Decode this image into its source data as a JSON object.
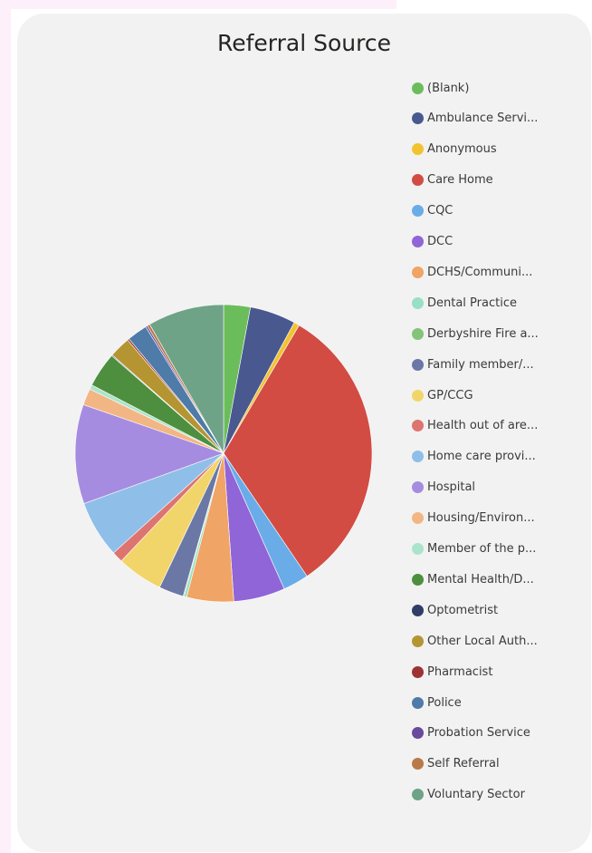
{
  "chart_data": {
    "type": "pie",
    "title": "Referral Source",
    "legend_position": "right",
    "slices": [
      {
        "label": "(Blank)",
        "legend_text": "(Blank)",
        "value": 2.9,
        "color": "#6bbd5b"
      },
      {
        "label": "Ambulance Service",
        "legend_text": "Ambulance Servi...",
        "value": 5.0,
        "color": "#4a5890"
      },
      {
        "label": "Anonymous",
        "legend_text": "Anonymous",
        "value": 0.6,
        "color": "#f2c331"
      },
      {
        "label": "Care Home",
        "legend_text": "Care Home",
        "value": 32.0,
        "color": "#d24c44"
      },
      {
        "label": "CQC",
        "legend_text": "CQC",
        "value": 2.8,
        "color": "#6aace8"
      },
      {
        "label": "DCC",
        "legend_text": "DCC",
        "value": 5.6,
        "color": "#9065d8"
      },
      {
        "label": "DCHS/Community",
        "legend_text": "DCHS/Communi...",
        "value": 5.1,
        "color": "#f0a465"
      },
      {
        "label": "Dental Practice",
        "legend_text": "Dental Practice",
        "value": 0.3,
        "color": "#99dfc3"
      },
      {
        "label": "Derbyshire Fire and Rescue",
        "legend_text": "Derbyshire Fire a...",
        "value": 0.1,
        "color": "#83c47a"
      },
      {
        "label": "Family member/Friend",
        "legend_text": "Family member/...",
        "value": 2.7,
        "color": "#6b78a6"
      },
      {
        "label": "GP/CCG",
        "legend_text": "GP/CCG",
        "value": 5.0,
        "color": "#f2d56a"
      },
      {
        "label": "Health out of area",
        "legend_text": "Health out of are...",
        "value": 1.2,
        "color": "#de7470"
      },
      {
        "label": "Home care provider",
        "legend_text": "Home care provi...",
        "value": 6.2,
        "color": "#8fbfe8"
      },
      {
        "label": "Hospital",
        "legend_text": "Hospital",
        "value": 10.8,
        "color": "#a68ce0"
      },
      {
        "label": "Housing/Environmental Health",
        "legend_text": "Housing/Environ...",
        "value": 1.8,
        "color": "#f2b684"
      },
      {
        "label": "Member of the public",
        "legend_text": "Member of the p...",
        "value": 0.5,
        "color": "#abe4cc"
      },
      {
        "label": "Mental Health/DHcFT",
        "legend_text": "Mental Health/D...",
        "value": 3.8,
        "color": "#4e8f3f"
      },
      {
        "label": "Optometrist",
        "legend_text": "Optometrist",
        "value": 0.1,
        "color": "#2f3e68"
      },
      {
        "label": "Other Local Authority",
        "legend_text": "Other Local Auth...",
        "value": 2.3,
        "color": "#b59532"
      },
      {
        "label": "Pharmacist",
        "legend_text": "Pharmacist",
        "value": 0.2,
        "color": "#9e3232"
      },
      {
        "label": "Police",
        "legend_text": "Police",
        "value": 2.2,
        "color": "#4e7ba8"
      },
      {
        "label": "Probation Service",
        "legend_text": "Probation Service",
        "value": 0.2,
        "color": "#6a4a9c"
      },
      {
        "label": "Self Referral",
        "legend_text": "Self Referral",
        "value": 0.3,
        "color": "#b87a4a"
      },
      {
        "label": "Voluntary Sector",
        "legend_text": "Voluntary Sector",
        "value": 8.3,
        "color": "#6ea387"
      }
    ]
  }
}
